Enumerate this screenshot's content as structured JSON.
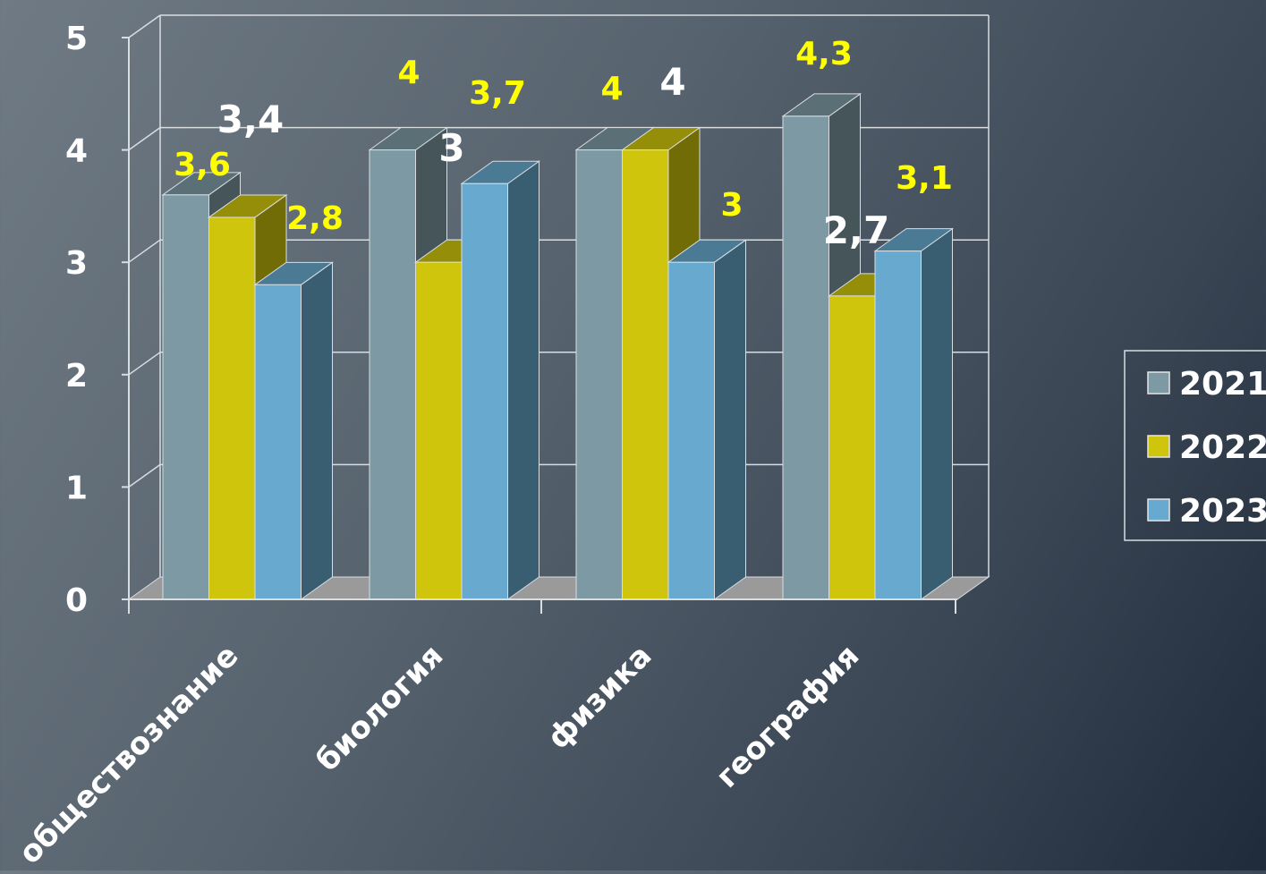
{
  "chart_data": {
    "type": "bar",
    "categories": [
      "обществознание",
      "биология",
      "физика",
      "география"
    ],
    "series": [
      {
        "name": "2021",
        "values": [
          3.6,
          4,
          4,
          4.3
        ],
        "labels": [
          "3,6",
          "4",
          "4",
          "4,3"
        ]
      },
      {
        "name": "2022",
        "values": [
          3.4,
          3,
          4,
          2.7
        ],
        "labels": [
          "3,4",
          "3",
          "4",
          "2,7"
        ]
      },
      {
        "name": "2023",
        "values": [
          2.8,
          3.7,
          3,
          3.1
        ],
        "labels": [
          "2,8",
          "3,7",
          "3",
          "3,1"
        ]
      }
    ],
    "yticks": [
      "0",
      "1",
      "2",
      "3",
      "4",
      "5"
    ],
    "ylim": [
      0,
      5
    ],
    "grid": true,
    "legend_position": "right",
    "colors": {
      "2021": "#7d9aa4",
      "2022": "#cfc50d",
      "2023": "#68aacf",
      "label_yellow": "#ffff00",
      "label_white": "#ffffff"
    }
  }
}
